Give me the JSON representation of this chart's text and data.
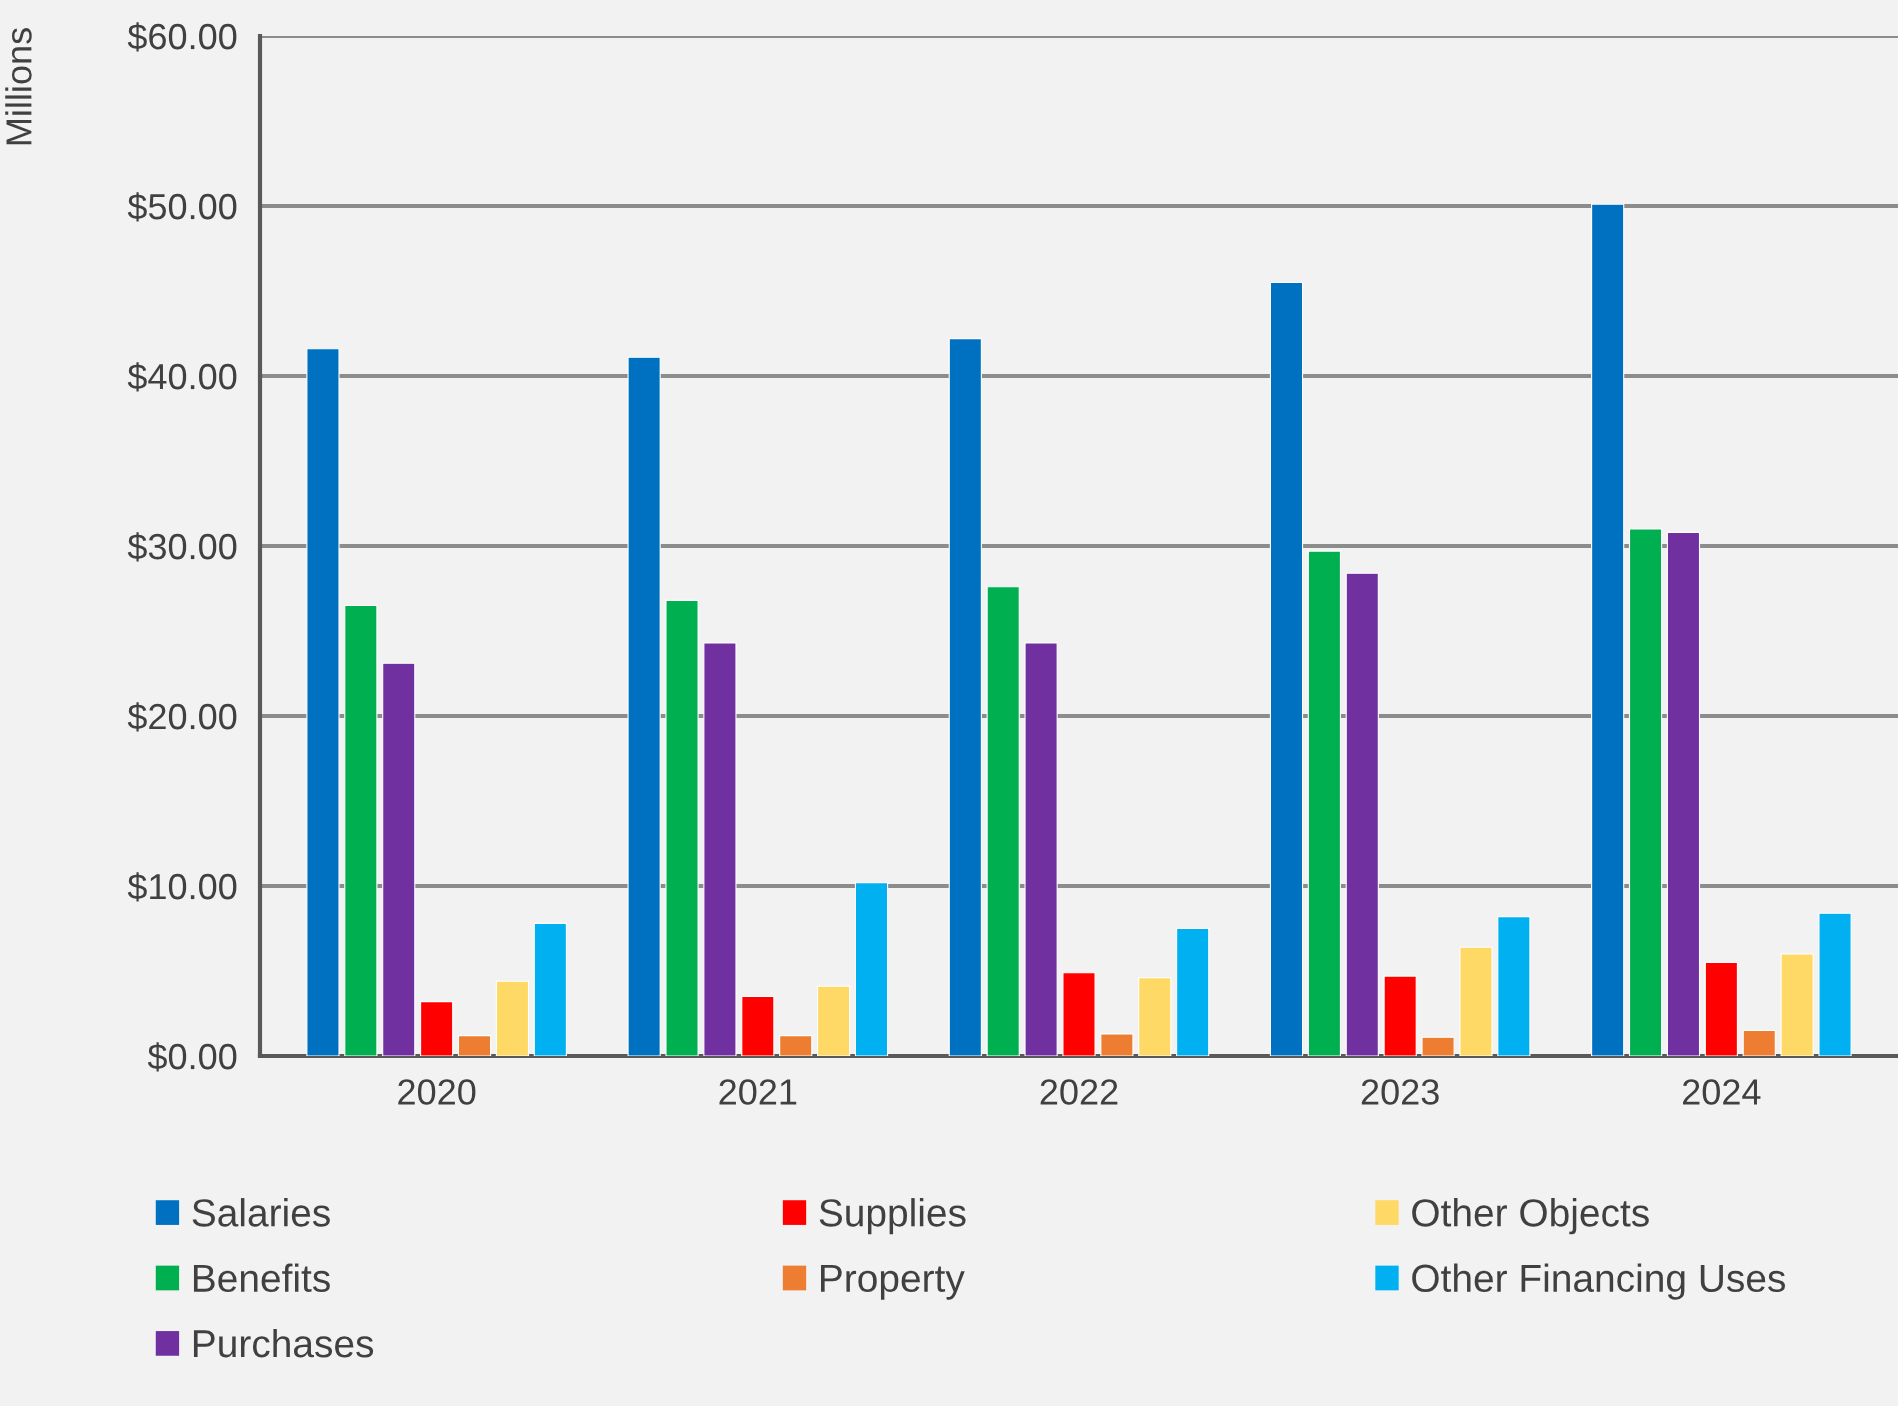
{
  "chart_data": {
    "type": "bar",
    "ylabel": "Millions",
    "categories": [
      "2020",
      "2021",
      "2022",
      "2023",
      "2024"
    ],
    "series": [
      {
        "name": "Salaries",
        "color": "#0070c0",
        "values": [
          41.6,
          41.1,
          42.2,
          45.5,
          50.1
        ]
      },
      {
        "name": "Benefits",
        "color": "#00b050",
        "values": [
          26.5,
          26.8,
          27.6,
          29.7,
          31.0
        ]
      },
      {
        "name": "Purchases",
        "color": "#7030a0",
        "values": [
          23.1,
          24.3,
          24.3,
          28.4,
          30.8
        ]
      },
      {
        "name": "Supplies",
        "color": "#ff0000",
        "values": [
          3.2,
          3.5,
          4.9,
          4.7,
          5.5
        ]
      },
      {
        "name": "Property",
        "color": "#ed7d31",
        "values": [
          1.2,
          1.2,
          1.3,
          1.1,
          1.5
        ]
      },
      {
        "name": "Other Objects",
        "color": "#ffd966",
        "values": [
          4.4,
          4.1,
          4.6,
          6.4,
          6.0
        ]
      },
      {
        "name": "Other Financing Uses",
        "color": "#00b0f0",
        "values": [
          7.8,
          10.2,
          7.5,
          8.2,
          8.4
        ]
      }
    ],
    "ylim": [
      0,
      60
    ],
    "yticks": [
      {
        "value": 0,
        "label": "$0.00"
      },
      {
        "value": 10,
        "label": "$10.00"
      },
      {
        "value": 20,
        "label": "$20.00"
      },
      {
        "value": 30,
        "label": "$30.00"
      },
      {
        "value": 40,
        "label": "$40.00"
      },
      {
        "value": 50,
        "label": "$50.00"
      },
      {
        "value": 60,
        "label": "$60.00"
      }
    ],
    "grid": "y",
    "legend": "bottom"
  }
}
